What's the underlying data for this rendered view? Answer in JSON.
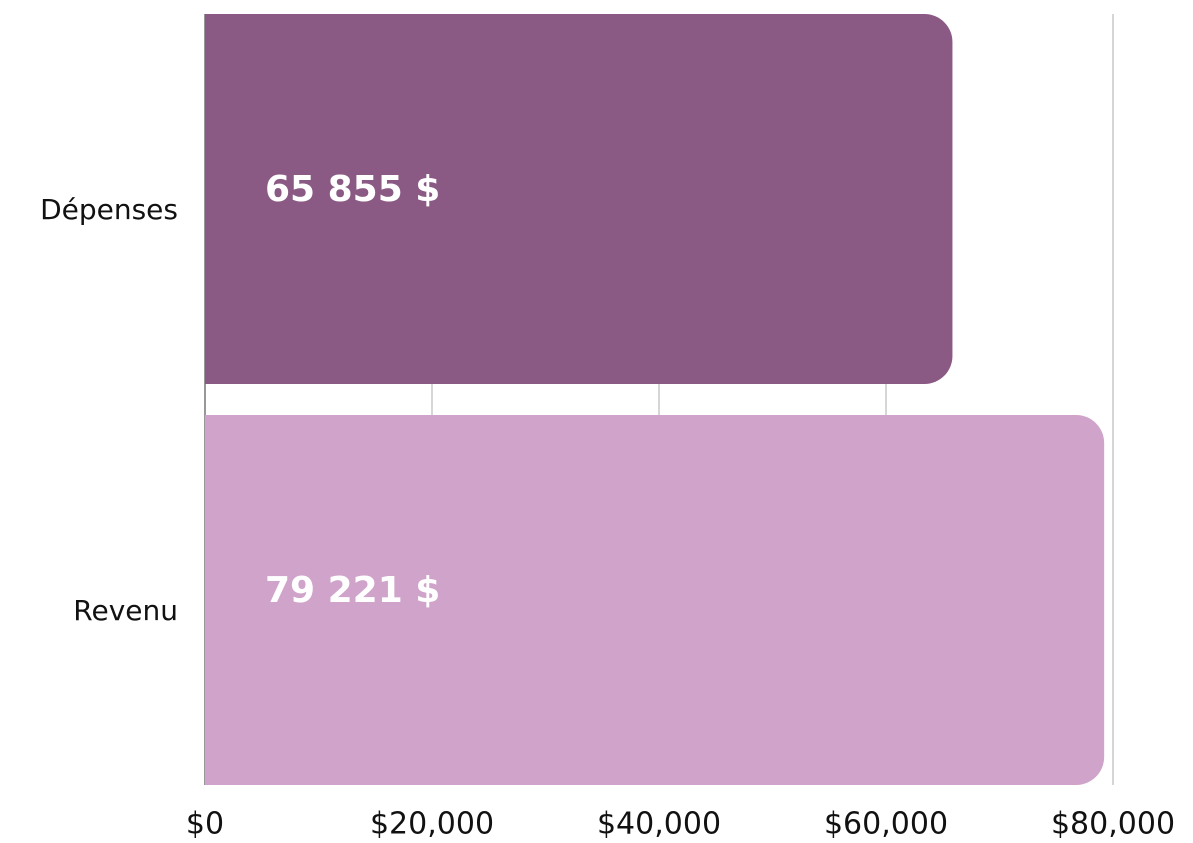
{
  "chart_data": {
    "type": "bar",
    "orientation": "horizontal",
    "categories": [
      "Dépenses",
      "Revenu"
    ],
    "values": [
      65855,
      79221
    ],
    "value_labels": [
      "65 855 $",
      "79 221 $"
    ],
    "colors": [
      "#8b5a84",
      "#cfa3ca"
    ],
    "xlim": [
      0,
      80000
    ],
    "xticks": [
      {
        "value": 0,
        "label": "$0"
      },
      {
        "value": 20000,
        "label": "$20,000"
      },
      {
        "value": 40000,
        "label": "$40,000"
      },
      {
        "value": 60000,
        "label": "$60,000"
      },
      {
        "value": 80000,
        "label": "$80,000"
      }
    ],
    "grid": true
  }
}
